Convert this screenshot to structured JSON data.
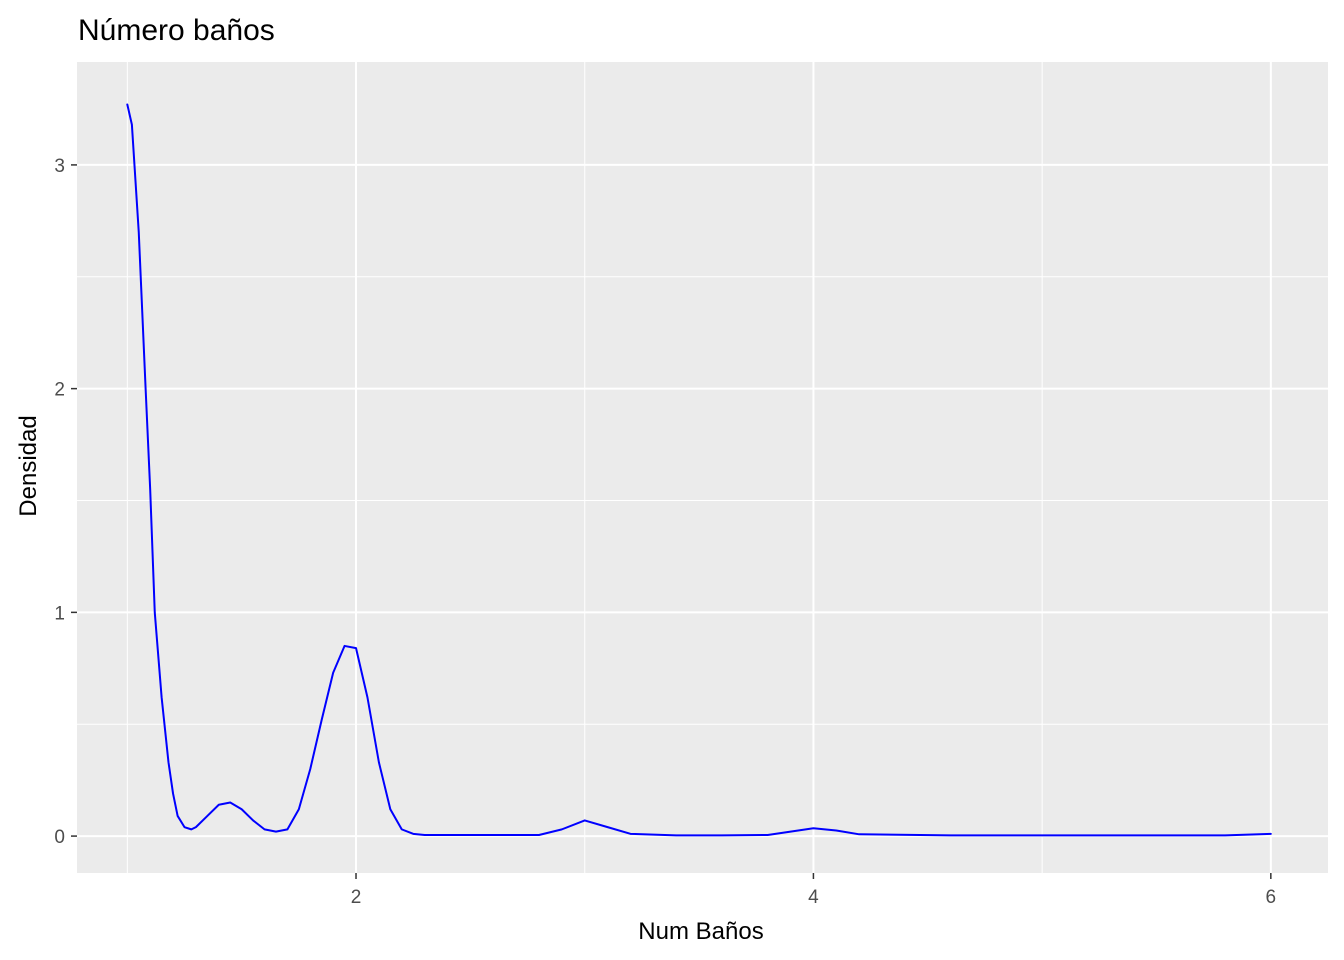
{
  "chart_data": {
    "type": "line",
    "title": "Número baños",
    "xlabel": "Num Baños",
    "ylabel": "Densidad",
    "xlim": [
      0.78,
      6.25
    ],
    "ylim": [
      -0.165,
      3.46
    ],
    "x_ticks": [
      2,
      4,
      6
    ],
    "x_minor": [
      1,
      3,
      5
    ],
    "y_ticks": [
      0,
      1,
      2,
      3
    ],
    "y_minor": [
      0.5,
      1.5,
      2.5
    ],
    "grid": true,
    "legend": "none",
    "colors": {
      "panel": "#EBEBEB",
      "grid": "#FFFFFF",
      "line": "#0000FF",
      "tick_label": "#4D4D4D",
      "tick_mark": "#333333"
    },
    "series": [
      {
        "x": [
          1.0,
          1.02,
          1.05,
          1.08,
          1.1,
          1.12,
          1.15,
          1.18,
          1.2,
          1.22,
          1.25,
          1.28,
          1.3,
          1.35,
          1.4,
          1.45,
          1.5,
          1.55,
          1.6,
          1.65,
          1.7,
          1.75,
          1.8,
          1.85,
          1.9,
          1.95,
          2.0,
          2.05,
          2.1,
          2.15,
          2.2,
          2.25,
          2.3,
          2.4,
          2.6,
          2.8,
          2.9,
          3.0,
          3.1,
          3.2,
          3.4,
          3.6,
          3.8,
          3.9,
          4.0,
          4.1,
          4.2,
          4.6,
          5.0,
          5.4,
          5.8,
          6.0
        ],
        "y": [
          3.27,
          3.18,
          2.7,
          2.0,
          1.55,
          1.0,
          0.62,
          0.33,
          0.19,
          0.09,
          0.04,
          0.03,
          0.04,
          0.09,
          0.14,
          0.15,
          0.12,
          0.07,
          0.03,
          0.02,
          0.03,
          0.12,
          0.3,
          0.52,
          0.73,
          0.85,
          0.84,
          0.62,
          0.33,
          0.12,
          0.03,
          0.01,
          0.005,
          0.005,
          0.005,
          0.005,
          0.03,
          0.07,
          0.04,
          0.01,
          0.003,
          0.003,
          0.005,
          0.02,
          0.035,
          0.025,
          0.008,
          0.003,
          0.003,
          0.003,
          0.003,
          0.01
        ]
      }
    ]
  }
}
